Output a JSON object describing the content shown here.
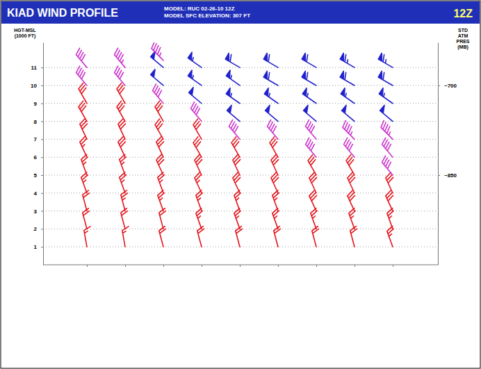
{
  "chart_data": {
    "type": "barb",
    "title": "KIAD WIND PROFILE",
    "subtitle": [
      "MODEL: RUC 02-26-10 12Z",
      "MODEL SFC ELEVATION: 307 FT"
    ],
    "annotations": [
      "12Z"
    ],
    "ylabel": "HGT-MSL (1000 FT)",
    "y2label": "STD ATM PRES (MB)",
    "categories": [
      null,
      null,
      null,
      null,
      null,
      null,
      null,
      null,
      null
    ],
    "ylim": [
      0,
      12.4
    ],
    "yticks": [
      1,
      2,
      3,
      4,
      5,
      6,
      7,
      8,
      9,
      10,
      11
    ],
    "y2lim": [
      0,
      12.4
    ],
    "y2ticks": [
      {
        "value": 10,
        "label": "~700"
      },
      {
        "value": 5,
        "label": "~850"
      }
    ],
    "grid": true,
    "columns": [
      {
        "heights": [
          1,
          2,
          3,
          4,
          5,
          6,
          7,
          8,
          9,
          10,
          11
        ],
        "speeds": [
          15,
          20,
          20,
          25,
          25,
          25,
          30,
          30,
          30,
          40,
          40
        ],
        "directions": [
          350,
          345,
          345,
          340,
          340,
          335,
          335,
          330,
          330,
          320,
          320
        ],
        "colors": [
          "#e4141c",
          "#e4141c",
          "#e4141c",
          "#e4141c",
          "#e4141c",
          "#e4141c",
          "#e4141c",
          "#e4141c",
          "#e4141c",
          "#cc33cc",
          "#cc33cc"
        ]
      },
      {
        "heights": [
          1,
          2,
          3,
          4,
          5,
          6,
          7,
          8,
          9,
          10,
          11
        ],
        "speeds": [
          15,
          20,
          25,
          25,
          25,
          30,
          30,
          30,
          30,
          40,
          45
        ],
        "directions": [
          350,
          345,
          345,
          340,
          340,
          335,
          335,
          330,
          330,
          320,
          320
        ],
        "colors": [
          "#e4141c",
          "#e4141c",
          "#e4141c",
          "#e4141c",
          "#e4141c",
          "#e4141c",
          "#e4141c",
          "#e4141c",
          "#e4141c",
          "#cc33cc",
          "#cc33cc"
        ]
      },
      {
        "heights": [
          1,
          2,
          3,
          4,
          5,
          6,
          7,
          8,
          9,
          10,
          11,
          11.4
        ],
        "speeds": [
          20,
          20,
          25,
          25,
          30,
          30,
          30,
          30,
          40,
          50,
          50,
          45
        ],
        "directions": [
          345,
          345,
          340,
          340,
          335,
          335,
          330,
          330,
          320,
          310,
          310,
          315
        ],
        "colors": [
          "#e4141c",
          "#e4141c",
          "#e4141c",
          "#e4141c",
          "#e4141c",
          "#e4141c",
          "#e4141c",
          "#e4141c",
          "#cc33cc",
          "#2222cc",
          "#2222cc",
          "#cc33cc"
        ]
      },
      {
        "heights": [
          1,
          2,
          3,
          4,
          5,
          6,
          7,
          8,
          9,
          10,
          11
        ],
        "speeds": [
          20,
          25,
          25,
          25,
          30,
          30,
          30,
          40,
          50,
          55,
          55
        ],
        "directions": [
          345,
          340,
          340,
          335,
          335,
          330,
          330,
          320,
          310,
          305,
          305
        ],
        "colors": [
          "#e4141c",
          "#e4141c",
          "#e4141c",
          "#e4141c",
          "#e4141c",
          "#e4141c",
          "#e4141c",
          "#cc33cc",
          "#2222cc",
          "#2222cc",
          "#2222cc"
        ]
      },
      {
        "heights": [
          1,
          2,
          3,
          4,
          5,
          6,
          7,
          8,
          9,
          10,
          11
        ],
        "speeds": [
          20,
          25,
          25,
          30,
          30,
          30,
          40,
          50,
          55,
          55,
          60
        ],
        "directions": [
          345,
          340,
          340,
          335,
          335,
          330,
          320,
          310,
          305,
          305,
          300
        ],
        "colors": [
          "#e4141c",
          "#e4141c",
          "#e4141c",
          "#e4141c",
          "#e4141c",
          "#e4141c",
          "#cc33cc",
          "#2222cc",
          "#2222cc",
          "#2222cc",
          "#2222cc"
        ]
      },
      {
        "heights": [
          1,
          2,
          3,
          4,
          5,
          6,
          7,
          8,
          9,
          10,
          11
        ],
        "speeds": [
          20,
          25,
          25,
          30,
          30,
          30,
          40,
          50,
          55,
          60,
          60
        ],
        "directions": [
          345,
          340,
          340,
          335,
          335,
          330,
          320,
          310,
          305,
          300,
          300
        ],
        "colors": [
          "#e4141c",
          "#e4141c",
          "#e4141c",
          "#e4141c",
          "#e4141c",
          "#e4141c",
          "#cc33cc",
          "#2222cc",
          "#2222cc",
          "#2222cc",
          "#2222cc"
        ]
      },
      {
        "heights": [
          1,
          2,
          3,
          4,
          5,
          6,
          7,
          8,
          9,
          10,
          11
        ],
        "speeds": [
          20,
          25,
          30,
          30,
          30,
          40,
          40,
          50,
          55,
          60,
          60
        ],
        "directions": [
          345,
          340,
          335,
          335,
          330,
          320,
          320,
          310,
          305,
          300,
          300
        ],
        "colors": [
          "#e4141c",
          "#e4141c",
          "#e4141c",
          "#e4141c",
          "#e4141c",
          "#cc33cc",
          "#cc33cc",
          "#2222cc",
          "#2222cc",
          "#2222cc",
          "#2222cc"
        ]
      },
      {
        "heights": [
          1,
          2,
          3,
          4,
          5,
          6,
          7,
          8,
          9,
          10,
          11
        ],
        "speeds": [
          20,
          25,
          30,
          30,
          30,
          40,
          45,
          50,
          55,
          60,
          65
        ],
        "directions": [
          345,
          340,
          335,
          335,
          330,
          320,
          315,
          310,
          305,
          300,
          300
        ],
        "colors": [
          "#e4141c",
          "#e4141c",
          "#e4141c",
          "#e4141c",
          "#e4141c",
          "#cc33cc",
          "#cc33cc",
          "#2222cc",
          "#2222cc",
          "#2222cc",
          "#2222cc"
        ]
      },
      {
        "heights": [
          1,
          2,
          3,
          4,
          5,
          6,
          7,
          8,
          9,
          10,
          11
        ],
        "speeds": [
          25,
          25,
          30,
          30,
          40,
          40,
          45,
          50,
          55,
          60,
          65
        ],
        "directions": [
          340,
          340,
          335,
          335,
          320,
          320,
          315,
          310,
          305,
          300,
          300
        ],
        "colors": [
          "#e4141c",
          "#e4141c",
          "#e4141c",
          "#e4141c",
          "#cc33cc",
          "#cc33cc",
          "#cc33cc",
          "#2222cc",
          "#2222cc",
          "#2222cc",
          "#2222cc"
        ]
      }
    ]
  }
}
